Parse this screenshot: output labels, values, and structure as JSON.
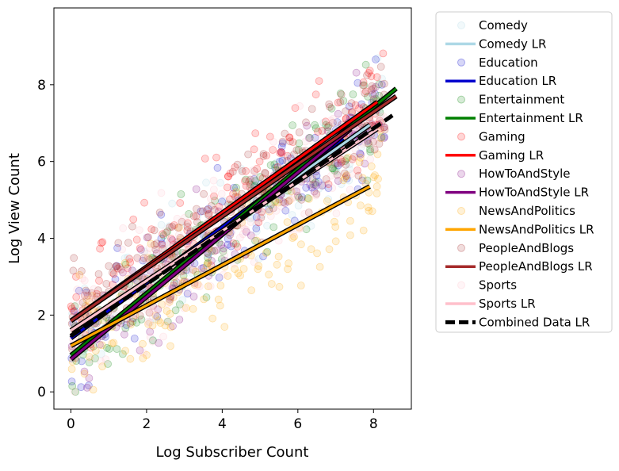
{
  "chart_data": {
    "type": "scatter",
    "title": "",
    "xlabel": "Log Subscriber Count",
    "ylabel": "Log View Count",
    "xlim": [
      -0.45,
      9.0
    ],
    "ylim": [
      -0.45,
      10.0
    ],
    "x_ticks": [
      0,
      2,
      4,
      6,
      8
    ],
    "y_ticks": [
      0,
      2,
      4,
      6,
      8
    ],
    "grid": false,
    "legend_position": "outside-right",
    "series": [
      {
        "name": "Comedy",
        "kind": "scatter",
        "color": "#add8e6"
      },
      {
        "name": "Comedy LR",
        "kind": "line",
        "color": "#add8e6",
        "x": [
          0,
          7.9
        ],
        "y": [
          1.45,
          6.95
        ]
      },
      {
        "name": "Education",
        "kind": "scatter",
        "color": "#0000cd"
      },
      {
        "name": "Education LR",
        "kind": "line",
        "color": "#0000cd",
        "x": [
          0,
          7.2
        ],
        "y": [
          1.4,
          6.6
        ]
      },
      {
        "name": "Entertainment",
        "kind": "scatter",
        "color": "#008000"
      },
      {
        "name": "Entertainment LR",
        "kind": "line",
        "color": "#008000",
        "x": [
          0,
          8.6
        ],
        "y": [
          0.95,
          7.9
        ]
      },
      {
        "name": "Gaming",
        "kind": "scatter",
        "color": "#ff0000"
      },
      {
        "name": "Gaming LR",
        "kind": "line",
        "color": "#ff0000",
        "x": [
          0,
          8.1
        ],
        "y": [
          1.85,
          7.55
        ]
      },
      {
        "name": "HowToAndStyle",
        "kind": "scatter",
        "color": "#800080"
      },
      {
        "name": "HowToAndStyle LR",
        "kind": "line",
        "color": "#800080",
        "x": [
          0,
          7.4
        ],
        "y": [
          0.85,
          6.85
        ]
      },
      {
        "name": "NewsAndPolitics",
        "kind": "scatter",
        "color": "#ffa500"
      },
      {
        "name": "NewsAndPolitics LR",
        "kind": "line",
        "color": "#ffa500",
        "x": [
          0,
          7.9
        ],
        "y": [
          1.2,
          5.35
        ]
      },
      {
        "name": "PeopleAndBlogs",
        "kind": "scatter",
        "color": "#a52a2a"
      },
      {
        "name": "PeopleAndBlogs LR",
        "kind": "line",
        "color": "#a52a2a",
        "x": [
          0,
          8.6
        ],
        "y": [
          1.85,
          7.7
        ]
      },
      {
        "name": "Sports",
        "kind": "scatter",
        "color": "#ffc0cb"
      },
      {
        "name": "Sports LR",
        "kind": "line",
        "color": "#ffc0cb",
        "x": [
          0,
          8.1
        ],
        "y": [
          1.6,
          6.85
        ]
      },
      {
        "name": "Combined Data LR",
        "kind": "line",
        "color": "#000000",
        "dashed": true,
        "x": [
          0,
          8.5
        ],
        "y": [
          1.45,
          7.2
        ]
      }
    ]
  }
}
